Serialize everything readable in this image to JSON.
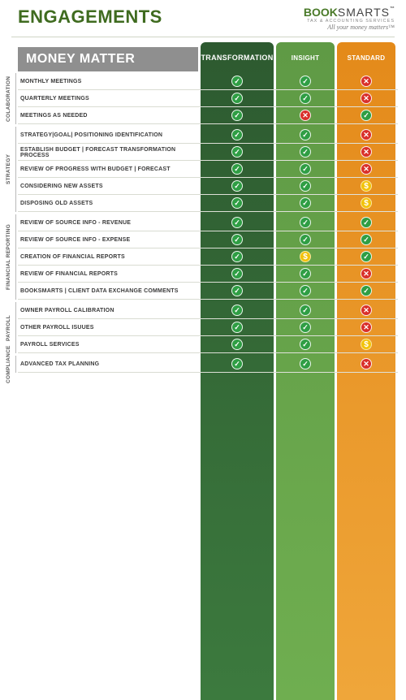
{
  "header": {
    "title": "ENGAGEMENTS",
    "logo_book": "BOOK",
    "logo_smarts": "SMARTS",
    "logo_tm": "™",
    "logo_sub": "TAX & ACCOUNTING SERVICES",
    "logo_tagline": "All your money matters™"
  },
  "table": {
    "row_header": "MONEY MATTER",
    "columns": [
      "TRANSFORMATION",
      "INSIGHT",
      "STANDARD"
    ],
    "column_colors": [
      "#2d5a30",
      "#6fae50",
      "#e48a1a"
    ],
    "icon_colors": {
      "check": "#2f9e44",
      "cross": "#d9302a",
      "dollar": "#f2c20a"
    }
  },
  "sections": [
    {
      "label": "COLABORATION",
      "rows": [
        {
          "label": "MONTHLY MEETINGS",
          "v": [
            "check",
            "check",
            "cross"
          ]
        },
        {
          "label": "QUARTERLY MEETINGS",
          "v": [
            "check",
            "check",
            "cross"
          ]
        },
        {
          "label": "MEETINGS AS NEEDED",
          "v": [
            "check",
            "cross",
            "check"
          ]
        }
      ]
    },
    {
      "label": "STRATEGY",
      "rows": [
        {
          "label": "STRATEGY|GOAL| POSITIONING IDENTIFICATION",
          "v": [
            "check",
            "check",
            "cross"
          ]
        },
        {
          "label": "ESTABLISH BUDGET | FORECAST TRANSFORMATION PROCESS",
          "v": [
            "check",
            "check",
            "cross"
          ]
        },
        {
          "label": "REVIEW OF PROGRESS WITH BUDGET | FORECAST",
          "v": [
            "check",
            "check",
            "cross"
          ]
        },
        {
          "label": "CONSIDERING NEW ASSETS",
          "v": [
            "check",
            "check",
            "dollar"
          ]
        },
        {
          "label": "DISPOSING OLD ASSETS",
          "v": [
            "check",
            "check",
            "dollar"
          ]
        }
      ]
    },
    {
      "label": "FINANCIAL REPORTING",
      "rows": [
        {
          "label": "REVIEW OF SOURCE INFO - REVENUE",
          "v": [
            "check",
            "check",
            "check"
          ]
        },
        {
          "label": "REVIEW OF SOURCE INFO - EXPENSE",
          "v": [
            "check",
            "check",
            "check"
          ]
        },
        {
          "label": "CREATION OF FINANCIAL REPORTS",
          "v": [
            "check",
            "dollar",
            "check"
          ]
        },
        {
          "label": "REVIEW OF FINANCIAL REPORTS",
          "v": [
            "check",
            "check",
            "cross"
          ]
        },
        {
          "label": "BOOKSMARTS | CLIENT DATA EXCHANGE COMMENTS",
          "v": [
            "check",
            "check",
            "check"
          ]
        }
      ]
    },
    {
      "label": "PAYROLL",
      "rows": [
        {
          "label": "OWNER PAYROLL CALIBRATION",
          "v": [
            "check",
            "check",
            "cross"
          ]
        },
        {
          "label": "OTHER PAYROLL ISUUES",
          "v": [
            "check",
            "check",
            "cross"
          ]
        },
        {
          "label": "PAYROLL SERVICES",
          "v": [
            "check",
            "check",
            "dollar"
          ]
        }
      ]
    },
    {
      "label": "COMPLIANCE",
      "rows": [
        {
          "label": "ADVANCED TAX PLANNING",
          "v": [
            "check",
            "check",
            "cross"
          ]
        }
      ]
    }
  ]
}
